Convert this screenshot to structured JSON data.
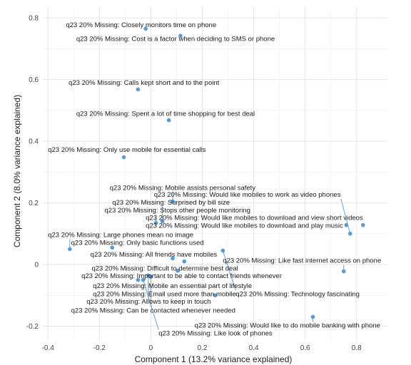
{
  "chart_data": {
    "type": "scatter",
    "xlabel": "Component 1 (13.2% variance explained)",
    "ylabel": "Component 2 (8.0% variance explained)",
    "xlim": [
      -0.42,
      0.92
    ],
    "ylim": [
      -0.245,
      0.835
    ],
    "x_ticks": [
      -0.4,
      -0.2,
      0,
      0.2,
      0.4,
      0.6,
      0.8
    ],
    "x_tick_labels": [
      "-0.4",
      "-0.2",
      "0",
      "0.2",
      "0.4",
      "0.6",
      "0.8"
    ],
    "y_ticks": [
      -0.2,
      0,
      0.2,
      0.4,
      0.6,
      0.8
    ],
    "y_tick_labels": [
      "-0.2",
      "0",
      "0.2",
      "0.4",
      "0.6",
      "0.8"
    ],
    "grid": true,
    "point_color": "#5b9bd5",
    "points": [
      {
        "label": "q23 20% Missing: Closely monitors time on phone",
        "x": -0.02,
        "y": 0.765,
        "lx": -0.33,
        "ly": 0.778
      },
      {
        "label": "q23 20% Missing: Cost is a factor when deciding to SMS or phone",
        "x": 0.115,
        "y": 0.742,
        "lx": -0.29,
        "ly": 0.733
      },
      {
        "label": "q23 20% Missing: Calls kept short and to the point",
        "x": -0.05,
        "y": 0.568,
        "lx": -0.32,
        "ly": 0.59
      },
      {
        "label": "q23 20% Missing: Spent a lot of time shopping for best deal",
        "x": 0.07,
        "y": 0.468,
        "lx": -0.29,
        "ly": 0.49
      },
      {
        "label": "q23 20% Missing: Only use mobile for essential calls",
        "x": -0.105,
        "y": 0.348,
        "lx": -0.4,
        "ly": 0.373
      },
      {
        "label": "q23 20% Missing: Mobile assists personal safety",
        "x": 0.085,
        "y": 0.205,
        "lx": -0.16,
        "ly": 0.25
      },
      {
        "label": "q23 20% Missing: Would like mobiles to work as video phones",
        "x": 0.775,
        "y": 0.1,
        "lx": 0.012,
        "ly": 0.228
      },
      {
        "label": "q23 20% Missing: Surprised by bill size",
        "x": 0.045,
        "y": 0.14,
        "lx": -0.15,
        "ly": 0.202
      },
      {
        "label": "q23 20% Missing: Stops other people monitoring",
        "x": 0.02,
        "y": 0.135,
        "lx": -0.18,
        "ly": 0.177
      },
      {
        "label": "q23 20% Missing: Would like mobiles to download and view short videos",
        "x": 0.825,
        "y": 0.128,
        "lx": -0.02,
        "ly": 0.152
      },
      {
        "label": "q23 20% Missing: Would like mobiles to download and play music",
        "x": 0.76,
        "y": 0.128,
        "lx": -0.02,
        "ly": 0.127
      },
      {
        "label": "q23 20% Missing: Large phones mean no image",
        "x": -0.315,
        "y": 0.05,
        "lx": -0.4,
        "ly": 0.097
      },
      {
        "label": "q23 20% Missing: Only basic functions used",
        "x": -0.15,
        "y": 0.055,
        "lx": -0.31,
        "ly": 0.071
      },
      {
        "label": "q23 20% Missing: All friends have mobiles",
        "x": 0.085,
        "y": 0.02,
        "lx": -0.235,
        "ly": 0.033
      },
      {
        "label": "q23 20% Missing: Like fast internet access on phone",
        "x": 0.75,
        "y": -0.022,
        "lx": 0.28,
        "ly": 0.013
      },
      {
        "label": "q23 20% Missing: Difficult to determine best deal",
        "x": 0.13,
        "y": 0.01,
        "lx": -0.23,
        "ly": -0.012
      },
      {
        "label": "q23 20% Missing: Important to be able to contact friends whenever",
        "x": 0.105,
        "y": -0.02,
        "lx": -0.27,
        "ly": -0.036
      },
      {
        "label": "q23 20% Missing: Mobile an essential part of lifestyle",
        "x": -0.05,
        "y": -0.05,
        "lx": -0.225,
        "ly": -0.068
      },
      {
        "label": "q23 20% Missing: Email used more than mobile",
        "x": 0.25,
        "y": -0.1,
        "lx": -0.225,
        "ly": -0.095
      },
      {
        "label": "q23 20% Missing: Technology fascinating",
        "x": 0.28,
        "y": 0.045,
        "lx": 0.33,
        "ly": -0.095
      },
      {
        "label": "q23 20% Missing: Allows to keep in touch",
        "x": -0.01,
        "y": -0.035,
        "lx": -0.25,
        "ly": -0.12
      },
      {
        "label": "q23 20% Missing: Can be contacted whenever needed",
        "x": 0.0,
        "y": -0.04,
        "lx": -0.31,
        "ly": -0.148
      },
      {
        "label": "q23 20% Missing: Would like to do mobile banking with phone",
        "x": 0.63,
        "y": -0.17,
        "lx": 0.17,
        "ly": -0.197
      },
      {
        "label": "q23 20% Missing: Like look of phones",
        "x": -0.03,
        "y": -0.05,
        "lx": 0.03,
        "ly": -0.222
      }
    ]
  }
}
